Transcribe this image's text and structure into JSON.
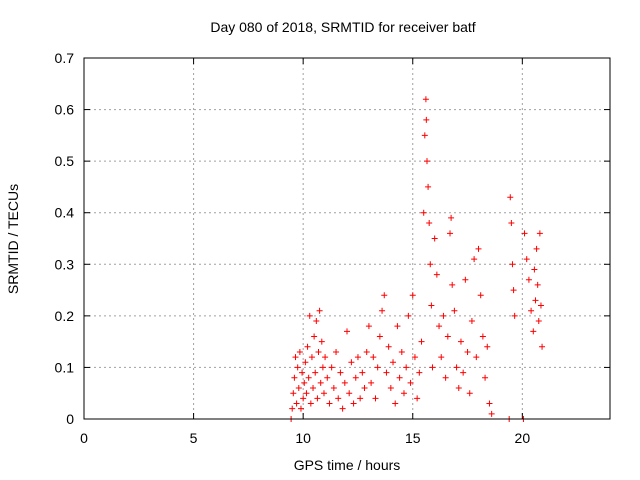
{
  "chart_data": {
    "type": "scatter",
    "title": "Day 080 of 2018, SRMTID for receiver batf",
    "xlabel": "GPS time / hours",
    "ylabel": "SRMTID / TECUs",
    "xlim": [
      0,
      24
    ],
    "ylim": [
      0,
      0.7
    ],
    "x_ticks": [
      0,
      5,
      10,
      15,
      20
    ],
    "y_ticks": [
      0,
      0.1,
      0.2,
      0.3,
      0.4,
      0.5,
      0.6,
      0.7
    ],
    "x_tick_labels": [
      "0",
      "5",
      "10",
      "15",
      "20"
    ],
    "y_tick_labels": [
      "0",
      "0.1",
      "0.2",
      "0.3",
      "0.4",
      "0.5",
      "0.6",
      "0.7"
    ],
    "grid": true,
    "marker": "+",
    "color": "#ff0000",
    "series": [
      {
        "name": "SRMTID",
        "points": [
          [
            9.45,
            0.0
          ],
          [
            9.5,
            0.02
          ],
          [
            9.55,
            0.05
          ],
          [
            9.6,
            0.08
          ],
          [
            9.65,
            0.12
          ],
          [
            9.7,
            0.03
          ],
          [
            9.75,
            0.1
          ],
          [
            9.8,
            0.06
          ],
          [
            9.85,
            0.13
          ],
          [
            9.9,
            0.02
          ],
          [
            9.95,
            0.09
          ],
          [
            10.0,
            0.04
          ],
          [
            10.05,
            0.07
          ],
          [
            10.1,
            0.11
          ],
          [
            10.15,
            0.05
          ],
          [
            10.2,
            0.14
          ],
          [
            10.25,
            0.08
          ],
          [
            10.3,
            0.2
          ],
          [
            10.35,
            0.03
          ],
          [
            10.4,
            0.12
          ],
          [
            10.45,
            0.06
          ],
          [
            10.5,
            0.16
          ],
          [
            10.55,
            0.09
          ],
          [
            10.6,
            0.19
          ],
          [
            10.65,
            0.04
          ],
          [
            10.7,
            0.13
          ],
          [
            10.75,
            0.21
          ],
          [
            10.8,
            0.07
          ],
          [
            10.85,
            0.15
          ],
          [
            10.9,
            0.1
          ],
          [
            10.95,
            0.05
          ],
          [
            11.0,
            0.12
          ],
          [
            11.1,
            0.08
          ],
          [
            11.2,
            0.03
          ],
          [
            11.3,
            0.1
          ],
          [
            11.4,
            0.06
          ],
          [
            11.5,
            0.13
          ],
          [
            11.6,
            0.04
          ],
          [
            11.7,
            0.09
          ],
          [
            11.8,
            0.02
          ],
          [
            11.9,
            0.07
          ],
          [
            12.0,
            0.17
          ],
          [
            12.1,
            0.05
          ],
          [
            12.2,
            0.11
          ],
          [
            12.3,
            0.03
          ],
          [
            12.4,
            0.08
          ],
          [
            12.5,
            0.12
          ],
          [
            12.6,
            0.04
          ],
          [
            12.7,
            0.09
          ],
          [
            12.8,
            0.06
          ],
          [
            12.9,
            0.13
          ],
          [
            13.0,
            0.18
          ],
          [
            13.1,
            0.07
          ],
          [
            13.2,
            0.12
          ],
          [
            13.3,
            0.04
          ],
          [
            13.4,
            0.1
          ],
          [
            13.5,
            0.16
          ],
          [
            13.6,
            0.21
          ],
          [
            13.7,
            0.24
          ],
          [
            13.8,
            0.09
          ],
          [
            13.9,
            0.14
          ],
          [
            14.0,
            0.06
          ],
          [
            14.1,
            0.11
          ],
          [
            14.2,
            0.03
          ],
          [
            14.3,
            0.18
          ],
          [
            14.4,
            0.08
          ],
          [
            14.5,
            0.13
          ],
          [
            14.6,
            0.05
          ],
          [
            14.7,
            0.1
          ],
          [
            14.8,
            0.2
          ],
          [
            14.9,
            0.07
          ],
          [
            15.0,
            0.24
          ],
          [
            15.1,
            0.12
          ],
          [
            15.2,
            0.04
          ],
          [
            15.3,
            0.09
          ],
          [
            15.4,
            0.15
          ],
          [
            15.5,
            0.4
          ],
          [
            15.55,
            0.55
          ],
          [
            15.6,
            0.62
          ],
          [
            15.62,
            0.58
          ],
          [
            15.65,
            0.5
          ],
          [
            15.7,
            0.45
          ],
          [
            15.75,
            0.38
          ],
          [
            15.8,
            0.3
          ],
          [
            15.85,
            0.22
          ],
          [
            15.9,
            0.1
          ],
          [
            16.0,
            0.35
          ],
          [
            16.1,
            0.28
          ],
          [
            16.2,
            0.18
          ],
          [
            16.3,
            0.12
          ],
          [
            16.4,
            0.2
          ],
          [
            16.5,
            0.08
          ],
          [
            16.6,
            0.16
          ],
          [
            16.7,
            0.36
          ],
          [
            16.75,
            0.39
          ],
          [
            16.8,
            0.26
          ],
          [
            16.9,
            0.21
          ],
          [
            17.0,
            0.1
          ],
          [
            17.1,
            0.06
          ],
          [
            17.2,
            0.15
          ],
          [
            17.3,
            0.09
          ],
          [
            17.4,
            0.27
          ],
          [
            17.5,
            0.13
          ],
          [
            17.6,
            0.05
          ],
          [
            17.7,
            0.19
          ],
          [
            17.8,
            0.31
          ],
          [
            17.9,
            0.12
          ],
          [
            18.0,
            0.33
          ],
          [
            18.1,
            0.24
          ],
          [
            18.2,
            0.16
          ],
          [
            18.3,
            0.08
          ],
          [
            18.4,
            0.14
          ],
          [
            18.5,
            0.03
          ],
          [
            18.6,
            0.01
          ],
          [
            19.4,
            0.0
          ],
          [
            19.45,
            0.43
          ],
          [
            19.5,
            0.38
          ],
          [
            19.55,
            0.3
          ],
          [
            19.6,
            0.25
          ],
          [
            19.65,
            0.2
          ],
          [
            20.05,
            0.0
          ],
          [
            20.1,
            0.36
          ],
          [
            20.2,
            0.31
          ],
          [
            20.3,
            0.27
          ],
          [
            20.4,
            0.21
          ],
          [
            20.5,
            0.17
          ],
          [
            20.55,
            0.29
          ],
          [
            20.6,
            0.23
          ],
          [
            20.65,
            0.33
          ],
          [
            20.7,
            0.26
          ],
          [
            20.75,
            0.19
          ],
          [
            20.8,
            0.36
          ],
          [
            20.85,
            0.22
          ],
          [
            20.9,
            0.14
          ]
        ]
      }
    ]
  }
}
